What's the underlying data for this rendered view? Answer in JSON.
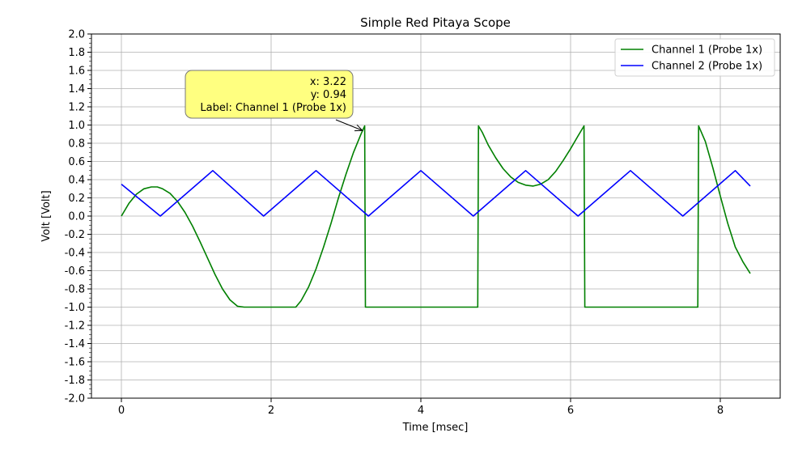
{
  "chart_data": {
    "type": "line",
    "title": "Simple Red Pitaya Scope",
    "xlabel": "Time [msec]",
    "ylabel": "Volt [Volt]",
    "xlim": [
      -0.4,
      8.8
    ],
    "ylim": [
      -2.0,
      2.0
    ],
    "xticks": [
      0,
      2,
      4,
      6,
      8
    ],
    "yticks": [
      -2.0,
      -1.8,
      -1.6,
      -1.4,
      -1.2,
      -1.0,
      -0.8,
      -0.6,
      -0.4,
      -0.2,
      0.0,
      0.2,
      0.4,
      0.6,
      0.8,
      1.0,
      1.2,
      1.4,
      1.6,
      1.8,
      2.0
    ],
    "grid": true,
    "legend_position": "top-right",
    "series": [
      {
        "name": "Channel 1 (Probe 1x)",
        "color": "#008000",
        "x": [
          0.0,
          0.1,
          0.2,
          0.3,
          0.4,
          0.48,
          0.55,
          0.65,
          0.75,
          0.85,
          0.95,
          1.05,
          1.15,
          1.25,
          1.35,
          1.45,
          1.55,
          1.64,
          2.33,
          2.4,
          2.5,
          2.6,
          2.7,
          2.8,
          2.9,
          3.0,
          3.1,
          3.2,
          3.25,
          3.26,
          4.76,
          4.77,
          4.82,
          4.9,
          5.0,
          5.1,
          5.2,
          5.3,
          5.4,
          5.5,
          5.6,
          5.7,
          5.8,
          5.9,
          6.0,
          6.1,
          6.18,
          6.19,
          7.7,
          7.71,
          7.8,
          7.9,
          8.0,
          8.1,
          8.2,
          8.3,
          8.4
        ],
        "y": [
          0.0,
          0.14,
          0.24,
          0.3,
          0.32,
          0.32,
          0.3,
          0.25,
          0.16,
          0.04,
          -0.11,
          -0.28,
          -0.46,
          -0.64,
          -0.8,
          -0.92,
          -0.99,
          -1.0,
          -1.0,
          -0.93,
          -0.78,
          -0.58,
          -0.34,
          -0.08,
          0.2,
          0.46,
          0.7,
          0.9,
          0.99,
          -1.0,
          -1.0,
          0.99,
          0.92,
          0.78,
          0.64,
          0.52,
          0.43,
          0.37,
          0.34,
          0.33,
          0.35,
          0.4,
          0.49,
          0.61,
          0.74,
          0.88,
          0.99,
          -1.0,
          -1.0,
          0.99,
          0.82,
          0.53,
          0.22,
          -0.08,
          -0.34,
          -0.5,
          -0.63
        ]
      },
      {
        "name": "Channel 2 (Probe 1x)",
        "color": "#0000ff",
        "x": [
          0.0,
          0.52,
          1.22,
          1.9,
          2.6,
          3.3,
          4.0,
          4.7,
          5.4,
          6.1,
          6.8,
          7.5,
          8.2,
          8.4
        ],
        "y": [
          0.35,
          0.0,
          0.5,
          0.0,
          0.5,
          0.0,
          0.5,
          0.0,
          0.5,
          0.0,
          0.5,
          0.0,
          0.5,
          0.33
        ]
      }
    ],
    "annotation": {
      "lines": [
        "x: 3.22",
        "y: 0.94",
        "Label: Channel 1 (Probe 1x)"
      ],
      "target": [
        3.22,
        0.94
      ],
      "background": "#ffff80"
    }
  }
}
